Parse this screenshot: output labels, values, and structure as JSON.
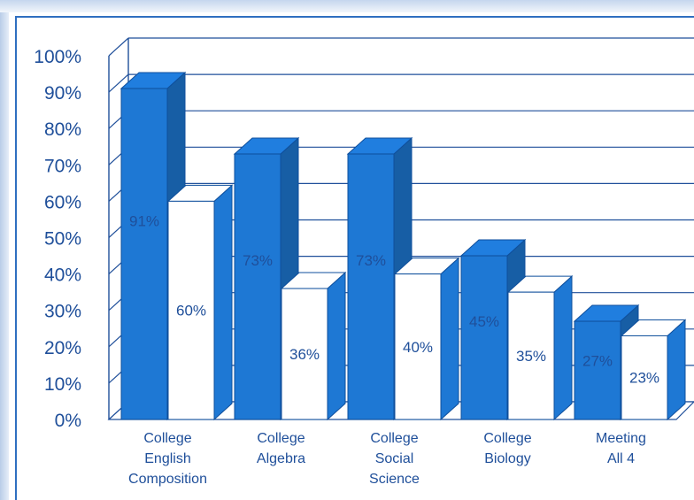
{
  "chart_data": {
    "type": "bar",
    "categories": [
      [
        "College",
        "English",
        "Composition"
      ],
      [
        "College",
        "Algebra"
      ],
      [
        "College",
        "Social",
        "Science"
      ],
      [
        "College",
        "Biology"
      ],
      [
        "Meeting",
        "All 4"
      ]
    ],
    "series": [
      {
        "values": [
          91,
          73,
          73,
          45,
          27
        ],
        "labels": [
          "91%",
          "73%",
          "73%",
          "45%",
          "27%"
        ],
        "color": "#1e78d4"
      },
      {
        "values": [
          60,
          36,
          40,
          35,
          23
        ],
        "labels": [
          "60%",
          "36%",
          "40%",
          "35%",
          "23%"
        ],
        "color": "#ffffff"
      }
    ],
    "y_ticks": [
      "0%",
      "10%",
      "20%",
      "30%",
      "40%",
      "50%",
      "60%",
      "70%",
      "80%",
      "90%",
      "100%"
    ],
    "ylim": [
      0,
      100
    ],
    "grid": true,
    "style": "3d-bar"
  }
}
